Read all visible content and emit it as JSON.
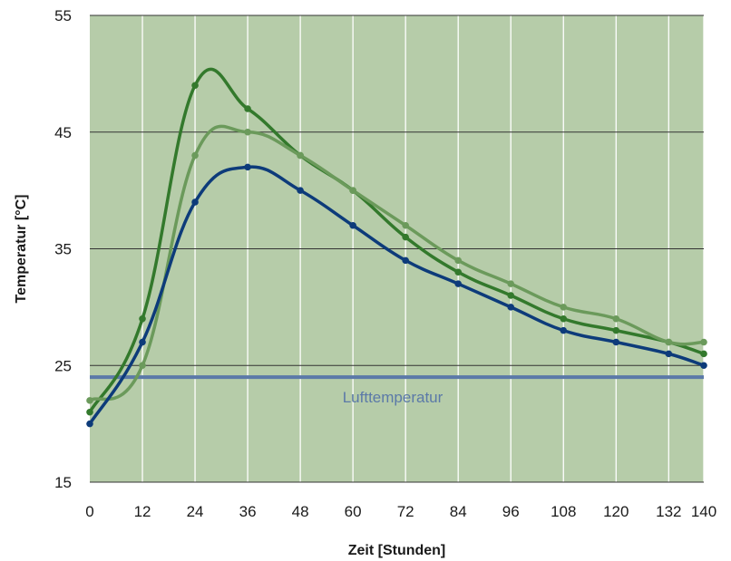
{
  "chart_data": {
    "type": "line",
    "xlabel": "Zeit [Stunden]",
    "ylabel": "Temperatur [°C]",
    "xlim": [
      0,
      140
    ],
    "ylim": [
      15,
      55
    ],
    "x_ticks": [
      0,
      12,
      24,
      36,
      48,
      60,
      72,
      84,
      96,
      108,
      120,
      132,
      140
    ],
    "y_ticks": [
      15,
      25,
      35,
      45,
      55
    ],
    "x_tick_labels": [
      "0",
      "12",
      "24",
      "36",
      "48",
      "60",
      "72",
      "84",
      "96",
      "108",
      "120",
      "132",
      "140"
    ],
    "y_tick_labels": [
      "15",
      "25",
      "35",
      "45",
      "55"
    ],
    "grid": true,
    "background_color": "#b6cca9",
    "series": [
      {
        "color": "#33792c",
        "x": [
          0,
          12,
          24,
          36,
          48,
          60,
          72,
          84,
          96,
          108,
          120,
          132,
          140
        ],
        "y": [
          21,
          29,
          49,
          47,
          43,
          40,
          36,
          33,
          31,
          29,
          28,
          27,
          26
        ]
      },
      {
        "color": "#6b9a5b",
        "x": [
          0,
          12,
          24,
          36,
          48,
          60,
          72,
          84,
          96,
          108,
          120,
          132,
          140
        ],
        "y": [
          22,
          25,
          43,
          45,
          43,
          40,
          37,
          34,
          32,
          30,
          29,
          27,
          27
        ]
      },
      {
        "color": "#0d3b7a",
        "x": [
          0,
          12,
          24,
          36,
          48,
          60,
          72,
          84,
          96,
          108,
          120,
          132,
          140
        ],
        "y": [
          20,
          27,
          39,
          42,
          40,
          37,
          34,
          32,
          30,
          28,
          27,
          26,
          25
        ]
      }
    ],
    "reference_line": {
      "label": "Lufttemperatur",
      "y": 24,
      "color": "#5b79a8"
    }
  }
}
